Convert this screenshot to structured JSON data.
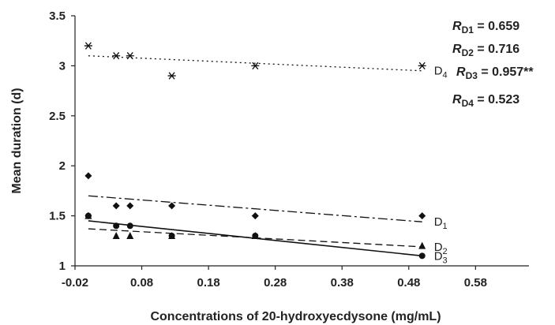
{
  "chart_data": {
    "type": "scatter",
    "title": "",
    "xlabel": "Concentrations of 20-hydroxyecdysone (mg/mL)",
    "ylabel": "Mean duration (d)",
    "xlim": [
      -0.02,
      0.66
    ],
    "ylim": [
      1,
      3.5
    ],
    "xticks": [
      "-0.02",
      "0.08",
      "0.18",
      "0.28",
      "0.38",
      "0.48",
      "0.58"
    ],
    "yticks": [
      "1",
      "1.5",
      "2",
      "2.5",
      "3",
      "3.5"
    ],
    "series": [
      {
        "name": "D1",
        "base": "D",
        "sub": "1",
        "marker": "diamond",
        "line_style": "dashdot",
        "points": [
          [
            0,
            1.9
          ],
          [
            0,
            1.5
          ],
          [
            0.0417,
            1.6
          ],
          [
            0.0625,
            1.6
          ],
          [
            0.125,
            1.6
          ],
          [
            0.25,
            1.5
          ],
          [
            0.5,
            1.5
          ]
        ],
        "trend": [
          [
            0,
            1.7
          ],
          [
            0.5,
            1.44
          ]
        ]
      },
      {
        "name": "D2",
        "base": "D",
        "sub": "2",
        "marker": "triangle",
        "line_style": "dashed",
        "points": [
          [
            0,
            1.5
          ],
          [
            0.0417,
            1.3
          ],
          [
            0.0625,
            1.3
          ],
          [
            0.125,
            1.3
          ],
          [
            0.25,
            1.3
          ],
          [
            0.5,
            1.2
          ]
        ],
        "trend": [
          [
            0,
            1.37
          ],
          [
            0.5,
            1.19
          ]
        ]
      },
      {
        "name": "D3",
        "base": "D",
        "sub": "3",
        "marker": "circle",
        "line_style": "solid",
        "points": [
          [
            0,
            1.5
          ],
          [
            0.0417,
            1.4
          ],
          [
            0.0625,
            1.4
          ],
          [
            0.125,
            1.3
          ],
          [
            0.25,
            1.3
          ],
          [
            0.5,
            1.1
          ]
        ],
        "trend": [
          [
            0,
            1.45
          ],
          [
            0.5,
            1.1
          ]
        ]
      },
      {
        "name": "D4",
        "base": "D",
        "sub": "4",
        "marker": "asterisk",
        "line_style": "dotted",
        "points": [
          [
            0,
            3.2
          ],
          [
            0.0417,
            3.1
          ],
          [
            0.0625,
            3.1
          ],
          [
            0.125,
            2.9
          ],
          [
            0.25,
            3.0
          ],
          [
            0.5,
            3.0
          ]
        ],
        "trend": [
          [
            0,
            3.1
          ],
          [
            0.5,
            2.95
          ]
        ]
      }
    ],
    "annotations": [
      {
        "var": "R",
        "sub": "D1",
        "rest": " = 0.659"
      },
      {
        "var": "R",
        "sub": "D2",
        "rest": " = 0.716"
      },
      {
        "var": "R",
        "sub": "D3",
        "rest": " = 0.957**"
      },
      {
        "var": "R",
        "sub": "D4",
        "rest": " = 0.523"
      }
    ],
    "grid": false,
    "legend": "none"
  }
}
